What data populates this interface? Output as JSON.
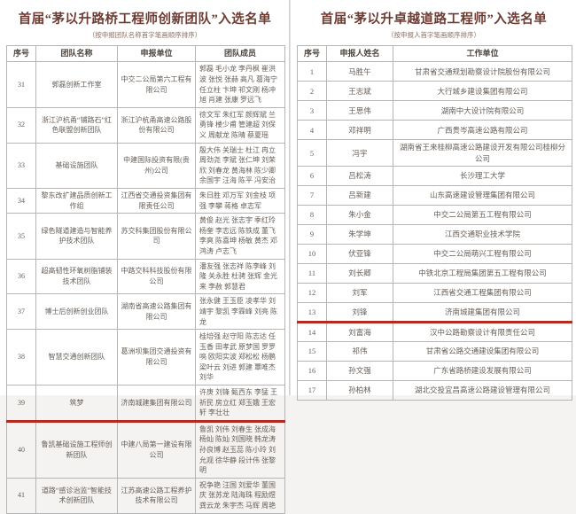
{
  "colors": {
    "highlight_line": "#b52a1e",
    "title_text": "#6e3b32"
  },
  "left_table": {
    "title": "首届“茅以升路桥工程师创新团队”入选名单",
    "subtitle": "（按申报团队名称首字笔画顺序排序）",
    "columns": {
      "no": "序号",
      "team": "团队名称",
      "unit": "申报单位",
      "members": "团队成员"
    },
    "rows": [
      {
        "no": "31",
        "team": "郭磊创新工作室",
        "unit": "中交二公局第六工程有限公司",
        "members": "郭磊 毛小龙 李丹枫 崔洪波 张悦 张赫 高凡 葛海宁 任立柱 卞坤 祁文刚 杨冲旭 肖建 张康 罗远飞",
        "highlight": false
      },
      {
        "no": "32",
        "team": "浙江沪杭甬“铺路石”红色联盟创新团队",
        "unit": "浙江沪杭甬高速公路股份有限公司",
        "members": "徐文军 朱红军 颜辉斌 兰勇锋 楼少甫 管建超 刘保义 周献龙 陈晴 蔡夏瑶",
        "highlight": false
      },
      {
        "no": "33",
        "team": "基础设施团队",
        "unit": "中建国际投资有限(贵州)公司",
        "members": "殷大伟 关瑞士 杜江 冉立 周劲尧 李斌 张仁坤 刘荣欣 刘春龙 黄海林 陈少卿 余国宇 汪海 陈平 冯安治",
        "highlight": false
      },
      {
        "no": "34",
        "team": "黎东改扩建品质创新工作组",
        "unit": "江西省交通投资集团有限责任公司",
        "members": "朱日胜 邓万军 刘金枝 项强 李攀 蒋格 卓志军",
        "highlight": false
      },
      {
        "no": "35",
        "team": "绿色隧道建造与智能养护技术团队",
        "unit": "苏交科集团股份有限公司",
        "members": "黄俊 赵光 张志宇 季红玲 杨奎 李志远 陈铁成 董飞 李爽 陈喜坤 杨敏 黄杰 邓鸿涛 卢志飞",
        "highlight": false
      },
      {
        "no": "36",
        "team": "超高韧性环氧树脂铺装技术团队",
        "unit": "中路交科科技股份有限公司",
        "members": "潘友强 张志祥 陈李峰 刘隆 关永胜 杜骋 张辉 金光来 李赦 郭慧君",
        "highlight": false
      },
      {
        "no": "37",
        "team": "博士后创新创业团队",
        "unit": "湖南省高速公路集团有限公司",
        "members": "张永健 王玉臣 凌孝华 刘靖宇 黎凯 李霖峰 刘亮 陈龙",
        "highlight": false
      },
      {
        "no": "38",
        "team": "智慧交通创新团队",
        "unit": "葛洲坝集团交通投资有限公司",
        "members": "桂培强 赵守阳 陈志达 任玉香 田孝武 原梦国 罗罗喨 欧阳实波 郑松松 杨鹏 梁叶云 刘进 郭建 覃唯杰 刘华",
        "highlight": false
      },
      {
        "no": "39",
        "team": "筑梦",
        "unit": "济南城建集团有限公司",
        "members": "许庚 刘锋 甄西东 李猛 王祈民 房立红 郑玉娥 王宏轩 李壮壮",
        "highlight": true
      },
      {
        "no": "40",
        "team": "鲁凯基础设施工程师创新团队",
        "unit": "中建八局第一建设有限公司",
        "members": "鲁凯 刘伟 刘春生 张成海 杨灿 陈灿 刘国晓 韩龙涛 孙良博 赵玉蕊 陈小玲 刘允观 徐华静 段计伟 张黎明",
        "highlight": false
      },
      {
        "no": "41",
        "team": "道路“感诊治监”智能技术创新团队",
        "unit": "江苏高速公路工程养护技术有限公司",
        "members": "祝争艳 汪国 刘爱华 董国庆 张苏龙 陆海珠 程励煜 龚云龙 朱宇杰 马辉 周艳",
        "highlight": false
      }
    ]
  },
  "right_table": {
    "title": "首届“茅以升卓越道路工程师”入选名单",
    "subtitle": "（按申报人首字笔画顺序排序）",
    "columns": {
      "no": "序号",
      "name": "申报人姓名",
      "unit": "工作单位"
    },
    "rows": [
      {
        "no": "1",
        "name": "马胜午",
        "unit": "甘肃省交通规划勘察设计院股份有限公司",
        "highlight": false
      },
      {
        "no": "2",
        "name": "王志斌",
        "unit": "大行城乡建设集团有限公司",
        "highlight": false
      },
      {
        "no": "3",
        "name": "王思伟",
        "unit": "湖南中大设计院有限公司",
        "highlight": false
      },
      {
        "no": "4",
        "name": "邓祥明",
        "unit": "广西贵岑高速公路有限公司",
        "highlight": false
      },
      {
        "no": "5",
        "name": "冯宇",
        "unit": "湖南省王来桂柳高速公路建设开发有限公司桂柳分公司",
        "highlight": false
      },
      {
        "no": "6",
        "name": "吕松涛",
        "unit": "长沙理工大学",
        "highlight": false
      },
      {
        "no": "7",
        "name": "吕新建",
        "unit": "山东高速建设管理集团有限公司",
        "highlight": false
      },
      {
        "no": "8",
        "name": "朱小金",
        "unit": "中交二公局第五工程有限公司",
        "highlight": false
      },
      {
        "no": "9",
        "name": "朱学坤",
        "unit": "江西交通职业技术学院",
        "highlight": false
      },
      {
        "no": "10",
        "name": "伏亚锋",
        "unit": "中交二公局萌兴工程有限公司",
        "highlight": false
      },
      {
        "no": "11",
        "name": "刘长卿",
        "unit": "中铁北京工程局集团第五工程有限公司",
        "highlight": false
      },
      {
        "no": "12",
        "name": "刘军",
        "unit": "江西省交通工程集团有限公司",
        "highlight": false
      },
      {
        "no": "13",
        "name": "刘锋",
        "unit": "济南城建集团有限公司",
        "highlight": true
      },
      {
        "no": "14",
        "name": "刘富海",
        "unit": "汉中公路勘察设计有限责任公司",
        "highlight": false
      },
      {
        "no": "15",
        "name": "祁伟",
        "unit": "甘肃省公路交通建设集团有限公司",
        "highlight": false
      },
      {
        "no": "16",
        "name": "孙文强",
        "unit": "广东省路桥建设发展有限公司",
        "highlight": false
      },
      {
        "no": "17",
        "name": "孙柏林",
        "unit": "湖北交投宜昌高速公路建设管理有限公司",
        "highlight": false
      }
    ]
  }
}
